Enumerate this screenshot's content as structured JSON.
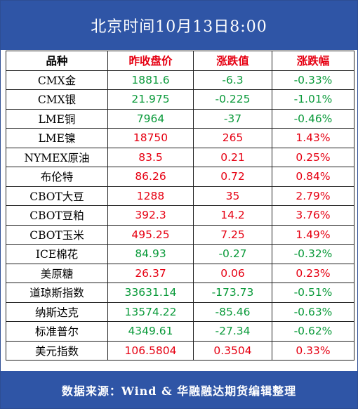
{
  "title": "北京时间10月13日8:00",
  "headers": {
    "name": "品种",
    "prev_close": "昨收盘价",
    "change": "涨跌值",
    "change_pct": "涨跌幅"
  },
  "colors": {
    "header_bg": "#2f55a6",
    "up": "#e60012",
    "down": "#0a9a3a"
  },
  "rows": [
    {
      "name": "CMX金",
      "prev_close": "1881.6",
      "change": "-6.3",
      "change_pct": "-0.33%",
      "direction": "down"
    },
    {
      "name": "CMX银",
      "prev_close": "21.975",
      "change": "-0.225",
      "change_pct": "-1.01%",
      "direction": "down"
    },
    {
      "name": "LME铜",
      "prev_close": "7964",
      "change": "-37",
      "change_pct": "-0.46%",
      "direction": "down"
    },
    {
      "name": "LME镍",
      "prev_close": "18750",
      "change": "265",
      "change_pct": "1.43%",
      "direction": "up"
    },
    {
      "name": "NYMEX原油",
      "prev_close": "83.5",
      "change": "0.21",
      "change_pct": "0.25%",
      "direction": "up"
    },
    {
      "name": "布伦特",
      "prev_close": "86.26",
      "change": "0.72",
      "change_pct": "0.84%",
      "direction": "up"
    },
    {
      "name": "CBOT大豆",
      "prev_close": "1288",
      "change": "35",
      "change_pct": "2.79%",
      "direction": "up"
    },
    {
      "name": "CBOT豆粕",
      "prev_close": "392.3",
      "change": "14.2",
      "change_pct": "3.76%",
      "direction": "up"
    },
    {
      "name": "CBOT玉米",
      "prev_close": "495.25",
      "change": "7.25",
      "change_pct": "1.49%",
      "direction": "up"
    },
    {
      "name": "ICE棉花",
      "prev_close": "84.93",
      "change": "-0.27",
      "change_pct": "-0.32%",
      "direction": "down"
    },
    {
      "name": "美原糖",
      "prev_close": "26.37",
      "change": "0.06",
      "change_pct": "0.23%",
      "direction": "up"
    },
    {
      "name": "道琼斯指数",
      "prev_close": "33631.14",
      "change": "-173.73",
      "change_pct": "-0.51%",
      "direction": "down"
    },
    {
      "name": "纳斯达克",
      "prev_close": "13574.22",
      "change": "-85.46",
      "change_pct": "-0.63%",
      "direction": "down"
    },
    {
      "name": "标准普尔",
      "prev_close": "4349.61",
      "change": "-27.34",
      "change_pct": "-0.62%",
      "direction": "down"
    },
    {
      "name": "美元指数",
      "prev_close": "106.5804",
      "change": "0.3504",
      "change_pct": "0.33%",
      "direction": "up"
    }
  ],
  "footer": "数据来源：Wind & 华融融达期货编辑整理"
}
